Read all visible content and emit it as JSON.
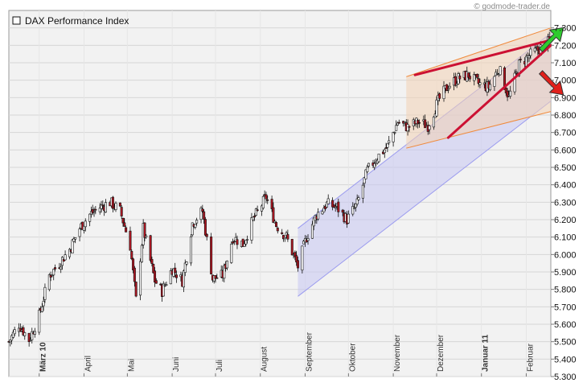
{
  "chart_data": {
    "type": "candlestick",
    "title": "DAX Performance Index",
    "source_credit": "© godmode-trader.de",
    "ylim": [
      5300,
      7400
    ],
    "y_ticks": [
      7300,
      7200,
      7100,
      7000,
      6900,
      6800,
      6700,
      6600,
      6500,
      6400,
      6300,
      6200,
      6100,
      6000,
      5900,
      5800,
      5700,
      5600,
      5500,
      5400,
      5300
    ],
    "y_tick_labels": [
      "7.300",
      "7.200",
      "7.100",
      "7.000",
      "6.900",
      "6.800",
      "6.700",
      "6.600",
      "6.500",
      "6.400",
      "6.300",
      "6.200",
      "6.100",
      "6.000",
      "5.900",
      "5.800",
      "5.700",
      "5.600",
      "5.500",
      "5.400",
      "5.300"
    ],
    "x_range": [
      "2010-02-08",
      "2011-02-18"
    ],
    "x_ticks": [
      {
        "label": "März 10",
        "date": "2010-03-01",
        "bold": true
      },
      {
        "label": "April",
        "date": "2010-04-01",
        "bold": false
      },
      {
        "label": "Mai",
        "date": "2010-05-01",
        "bold": false
      },
      {
        "label": "Juni",
        "date": "2010-06-01",
        "bold": false
      },
      {
        "label": "Juli",
        "date": "2010-07-01",
        "bold": false
      },
      {
        "label": "August",
        "date": "2010-08-01",
        "bold": false
      },
      {
        "label": "September",
        "date": "2010-09-01",
        "bold": false
      },
      {
        "label": "Oktober",
        "date": "2010-10-01",
        "bold": false
      },
      {
        "label": "November",
        "date": "2010-11-01",
        "bold": false
      },
      {
        "label": "Dezember",
        "date": "2010-12-01",
        "bold": false
      },
      {
        "label": "Januar 11",
        "date": "2011-01-01",
        "bold": true
      },
      {
        "label": "Februar",
        "date": "2011-02-01",
        "bold": false
      }
    ],
    "price_path": [
      [
        "2010-02-08",
        5500
      ],
      [
        "2010-02-15",
        5600
      ],
      [
        "2010-02-22",
        5510
      ],
      [
        "2010-03-01",
        5650
      ],
      [
        "2010-03-08",
        5880
      ],
      [
        "2010-03-15",
        5950
      ],
      [
        "2010-03-22",
        6030
      ],
      [
        "2010-03-29",
        6150
      ],
      [
        "2010-04-05",
        6230
      ],
      [
        "2010-04-12",
        6270
      ],
      [
        "2010-04-19",
        6300
      ],
      [
        "2010-04-26",
        6250
      ],
      [
        "2010-05-03",
        6050
      ],
      [
        "2010-05-07",
        5740
      ],
      [
        "2010-05-12",
        6150
      ],
      [
        "2010-05-20",
        5850
      ],
      [
        "2010-05-25",
        5790
      ],
      [
        "2010-06-01",
        5920
      ],
      [
        "2010-06-08",
        5850
      ],
      [
        "2010-06-15",
        6180
      ],
      [
        "2010-06-22",
        6250
      ],
      [
        "2010-06-29",
        5860
      ],
      [
        "2010-07-06",
        5880
      ],
      [
        "2010-07-13",
        6100
      ],
      [
        "2010-07-20",
        6060
      ],
      [
        "2010-07-27",
        6200
      ],
      [
        "2010-08-05",
        6330
      ],
      [
        "2010-08-12",
        6170
      ],
      [
        "2010-08-19",
        6100
      ],
      [
        "2010-08-27",
        5930
      ],
      [
        "2010-09-02",
        6100
      ],
      [
        "2010-09-09",
        6230
      ],
      [
        "2010-09-16",
        6290
      ],
      [
        "2010-09-23",
        6270
      ],
      [
        "2010-09-30",
        6200
      ],
      [
        "2010-10-07",
        6290
      ],
      [
        "2010-10-14",
        6480
      ],
      [
        "2010-10-21",
        6560
      ],
      [
        "2010-10-28",
        6620
      ],
      [
        "2010-11-04",
        6760
      ],
      [
        "2010-11-11",
        6730
      ],
      [
        "2010-11-18",
        6760
      ],
      [
        "2010-11-25",
        6740
      ],
      [
        "2010-12-02",
        6880
      ],
      [
        "2010-12-09",
        6970
      ],
      [
        "2010-12-16",
        7010
      ],
      [
        "2010-12-23",
        7030
      ],
      [
        "2010-12-30",
        6980
      ],
      [
        "2011-01-06",
        6960
      ],
      [
        "2011-01-13",
        7070
      ],
      [
        "2011-01-20",
        6900
      ],
      [
        "2011-01-27",
        7090
      ],
      [
        "2011-02-03",
        7140
      ],
      [
        "2011-02-10",
        7180
      ],
      [
        "2011-02-17",
        7220
      ]
    ],
    "annotations": [
      {
        "kind": "channel",
        "color": "#c7c7f3",
        "upper": [
          [
            "2010-08-27",
            6150
          ],
          [
            "2011-02-18",
            7270
          ]
        ],
        "lower": [
          [
            "2010-08-27",
            5760
          ],
          [
            "2011-02-18",
            6880
          ]
        ]
      },
      {
        "kind": "channel",
        "color": "#f3d2b4",
        "upper": [
          [
            "2010-11-10",
            7020
          ],
          [
            "2011-02-18",
            7300
          ]
        ],
        "lower": [
          [
            "2010-11-10",
            6610
          ],
          [
            "2011-02-18",
            6820
          ]
        ]
      },
      {
        "kind": "trendline",
        "color": "#cc1133",
        "points": [
          [
            "2010-11-16",
            7030
          ],
          [
            "2011-02-18",
            7230
          ]
        ]
      },
      {
        "kind": "trendline",
        "color": "#cc1133",
        "points": [
          [
            "2010-12-09",
            6670
          ],
          [
            "2011-02-18",
            7200
          ]
        ]
      },
      {
        "kind": "arrow",
        "color": "#2ecc2e",
        "direction": "up",
        "at": [
          "2011-02-10",
          7200
        ]
      },
      {
        "kind": "arrow",
        "color": "#e0201b",
        "direction": "down",
        "at": [
          "2011-02-10",
          7110
        ]
      }
    ]
  }
}
